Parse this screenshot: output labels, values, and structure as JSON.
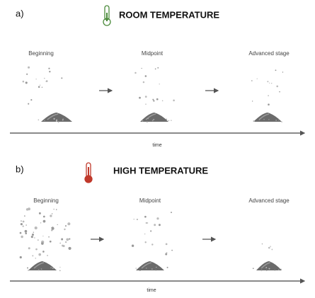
{
  "panels": [
    {
      "label": "a)",
      "title": "ROOM TEMPERATURE",
      "stages": [
        "Beginning",
        "Midpoint",
        "Advanced stage"
      ],
      "axis_label": "time"
    },
    {
      "label": "b)",
      "title": "HIGH TEMPERATURE",
      "stages": [
        "Beginning",
        "Midpoint",
        "Advanced stage"
      ],
      "axis_label": "time"
    }
  ]
}
